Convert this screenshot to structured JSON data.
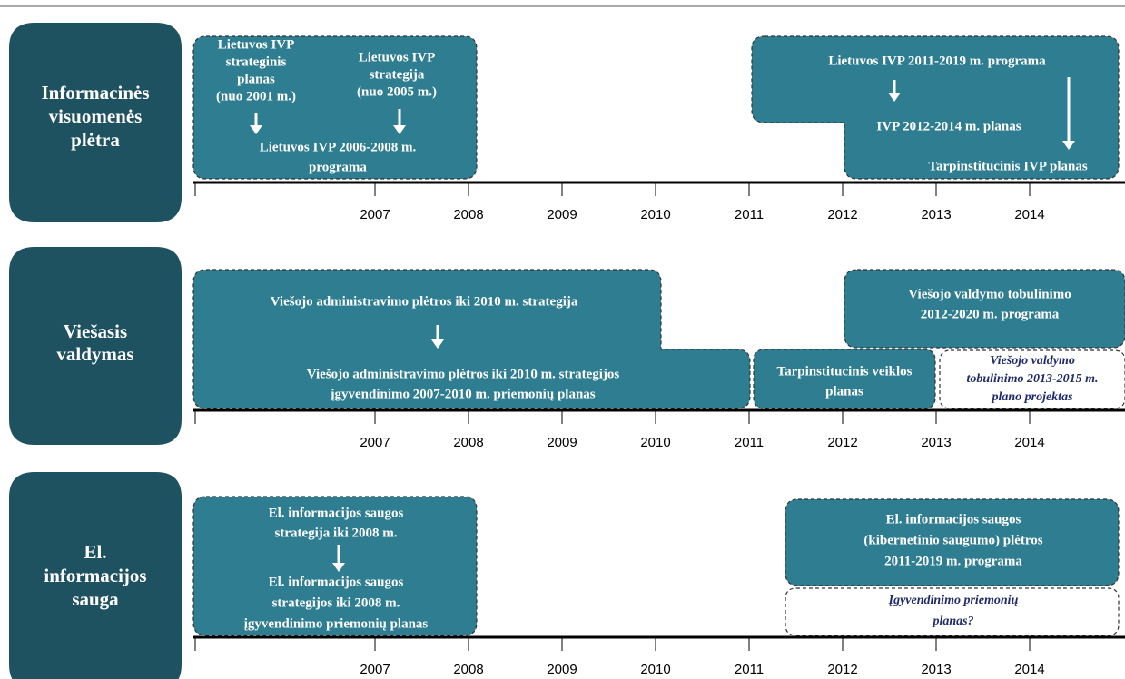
{
  "rows": [
    {
      "label": [
        "Informacinės",
        "visuomenės",
        "plėtra"
      ],
      "blocks": [
        {
          "lines": [
            "Lietuvos IVP",
            "strateginis",
            "planas",
            "(nuo 2001 m.)"
          ]
        },
        {
          "lines": [
            "Lietuvos IVP",
            "strategija",
            "(nuo 2005 m.)"
          ]
        },
        {
          "lines": [
            "Lietuvos IVP 2006-2008 m.",
            "programa"
          ]
        },
        {
          "lines": [
            "Lietuvos IVP 2011-2019 m. programa"
          ]
        },
        {
          "lines": [
            "IVP 2012-2014 m. planas"
          ]
        },
        {
          "lines": [
            "Tarpinstitucinis  IVP planas"
          ]
        }
      ],
      "years": [
        "2007",
        "2008",
        "2009",
        "2010",
        "2011",
        "2012",
        "2013",
        "2014"
      ]
    },
    {
      "label": [
        "Viešasis",
        "valdymas"
      ],
      "blocks": [
        {
          "lines": [
            "Viešojo administravimo  plėtros iki  2010 m. strategija"
          ]
        },
        {
          "lines": [
            "Viešojo administravimo plėtros iki 2010 m. strategijos",
            "įgyvendinimo 2007-2010 m. priemonių planas"
          ]
        },
        {
          "lines": [
            "Tarpinstitucinis  veiklos",
            "planas"
          ]
        },
        {
          "lines": [
            "Viešojo valdymo tobulinimo",
            "2012-2020 m. programa"
          ]
        },
        {
          "lines": [
            "Viešojo valdymo",
            "tobulinimo 2013-2015 m.",
            "plano projektas"
          ]
        }
      ],
      "years": [
        "2007",
        "2008",
        "2009",
        "2010",
        "2011",
        "2012",
        "2013",
        "2014"
      ]
    },
    {
      "label": [
        "El.",
        "informacijos",
        "sauga"
      ],
      "blocks": [
        {
          "lines": [
            "El. informacijos  saugos",
            "strategija iki 2008 m."
          ]
        },
        {
          "lines": [
            "El. informacijos  saugos",
            "strategijos iki 2008 m.",
            "įgyvendinimo  priemonių planas"
          ]
        },
        {
          "lines": [
            "El. informacijos  saugos",
            "(kibernetinio saugumo) plėtros",
            "2011-2019 m. programa"
          ]
        },
        {
          "lines": [
            "Įgyvendinimo priemonių",
            "planas?"
          ]
        }
      ],
      "years": [
        "2007",
        "2008",
        "2009",
        "2010",
        "2011",
        "2012",
        "2013",
        "2014"
      ]
    }
  ]
}
